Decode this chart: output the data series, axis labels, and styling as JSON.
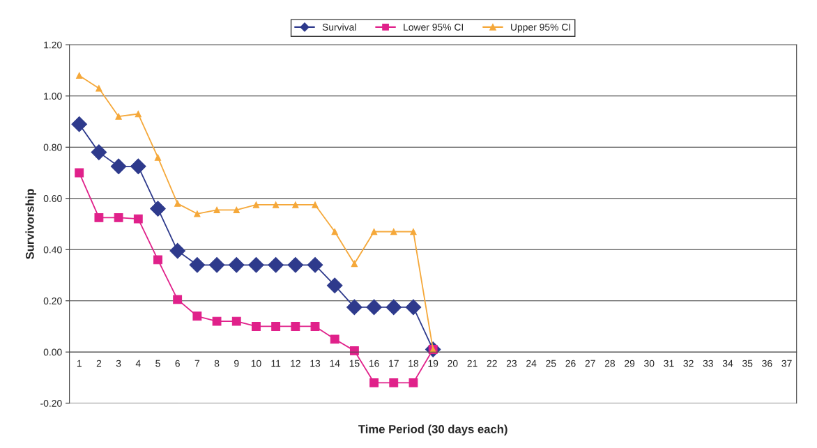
{
  "chart_data": {
    "type": "line",
    "xlabel": "Time Period (30 days each)",
    "ylabel": "Survivorship",
    "categories": [
      "1",
      "2",
      "3",
      "4",
      "5",
      "6",
      "7",
      "8",
      "9",
      "10",
      "11",
      "12",
      "13",
      "14",
      "15",
      "16",
      "17",
      "18",
      "19",
      "20",
      "21",
      "22",
      "23",
      "24",
      "25",
      "26",
      "27",
      "28",
      "29",
      "30",
      "31",
      "32",
      "33",
      "34",
      "35",
      "36",
      "37"
    ],
    "series": [
      {
        "name": "Survival",
        "color": "#2e3a8c",
        "marker": "diamond",
        "values": [
          0.89,
          0.78,
          0.725,
          0.725,
          0.56,
          0.395,
          0.34,
          0.34,
          0.34,
          0.34,
          0.34,
          0.34,
          0.34,
          0.26,
          0.175,
          0.175,
          0.175,
          0.175,
          0.01,
          null,
          null,
          null,
          null,
          null,
          null,
          null,
          null,
          null,
          null,
          null,
          null,
          null,
          null,
          null,
          null,
          null,
          null
        ]
      },
      {
        "name": "Lower 95% CI",
        "color": "#e0218a",
        "marker": "square",
        "values": [
          0.7,
          0.525,
          0.525,
          0.52,
          0.36,
          0.205,
          0.14,
          0.12,
          0.12,
          0.1,
          0.1,
          0.1,
          0.1,
          0.05,
          0.005,
          -0.12,
          -0.12,
          -0.12,
          0.01,
          null,
          null,
          null,
          null,
          null,
          null,
          null,
          null,
          null,
          null,
          null,
          null,
          null,
          null,
          null,
          null,
          null,
          null
        ]
      },
      {
        "name": "Upper 95% CI",
        "color": "#f5a83a",
        "marker": "triangle",
        "values": [
          1.08,
          1.03,
          0.92,
          0.93,
          0.76,
          0.58,
          0.54,
          0.555,
          0.555,
          0.575,
          0.575,
          0.575,
          0.575,
          0.47,
          0.345,
          0.47,
          0.47,
          0.47,
          0.01,
          null,
          null,
          null,
          null,
          null,
          null,
          null,
          null,
          null,
          null,
          null,
          null,
          null,
          null,
          null,
          null,
          null,
          null
        ]
      }
    ],
    "ylim": [
      -0.2,
      1.2
    ],
    "yticks": [
      {
        "value": -0.2,
        "label": "-0.20"
      },
      {
        "value": 0,
        "label": "0.00"
      },
      {
        "value": 0.2,
        "label": "0.20"
      },
      {
        "value": 0.4,
        "label": "0.40"
      },
      {
        "value": 0.6,
        "label": "0.60"
      },
      {
        "value": 0.8,
        "label": "0.80"
      },
      {
        "value": 1.0,
        "label": "1.00"
      },
      {
        "value": 1.2,
        "label": "1.20"
      }
    ],
    "grid": "y",
    "legend": "top"
  }
}
